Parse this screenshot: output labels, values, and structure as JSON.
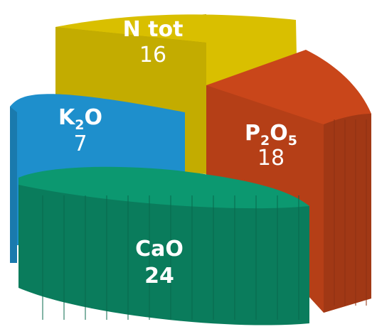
{
  "chart_data": {
    "type": "pie",
    "categories": [
      "N tot",
      "P2O5",
      "CaO",
      "K2O"
    ],
    "values": [
      16,
      18,
      24,
      7
    ],
    "labels": {
      "ntot": {
        "text": "N tot",
        "value": "16"
      },
      "p2o5": {
        "main1": "P",
        "sub1": "2",
        "main2": "O",
        "sub2": "5",
        "value": "18"
      },
      "cao": {
        "text": "CaO",
        "value": "24"
      },
      "k2o": {
        "main1": "K",
        "sub1": "2",
        "main2": "O",
        "value": "7"
      }
    },
    "colors": {
      "ntot": "#d9bf00",
      "p2o5": "#c9461a",
      "cao": "#0b8a66",
      "k2o": "#1e8fcc"
    },
    "style": "3d-exploded-pie"
  }
}
